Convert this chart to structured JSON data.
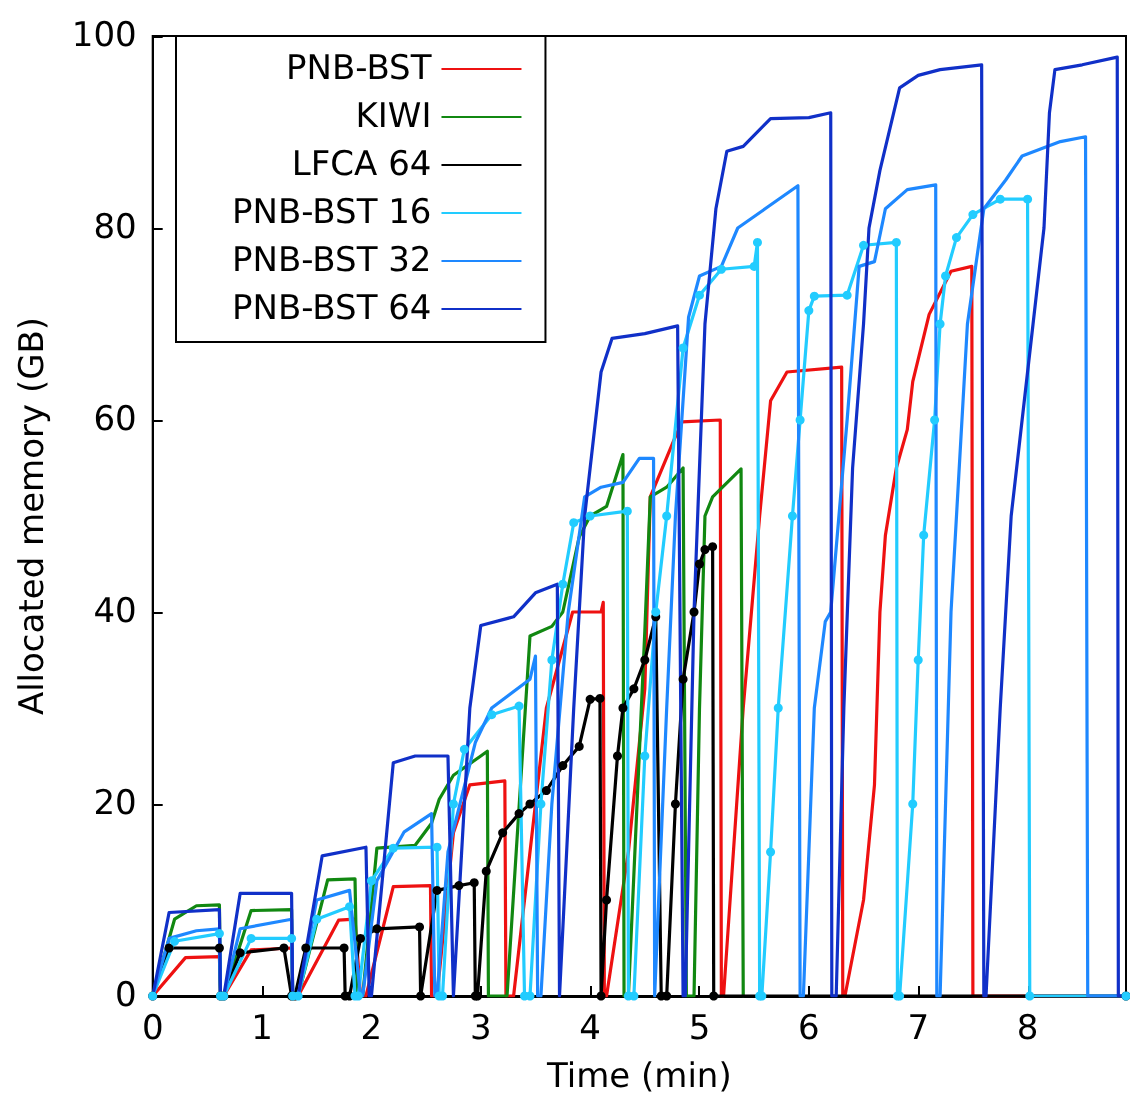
{
  "chart_data": {
    "type": "line",
    "xlabel": "Time (min)",
    "ylabel": "Allocated memory (GB)",
    "xlim": [
      0,
      8.9
    ],
    "ylim": [
      0,
      100
    ],
    "xticks": [
      0,
      1,
      2,
      3,
      4,
      5,
      6,
      7,
      8
    ],
    "yticks": [
      0,
      20,
      40,
      60,
      80,
      100
    ],
    "grid": false,
    "legend": "top left",
    "line_style": "solid",
    "series": [
      {
        "name": "PNB-BST",
        "color": "#ee1111",
        "marker": "none",
        "x": [
          0,
          0.3,
          0.61,
          0.62,
          0.65,
          0.9,
          1.27,
          1.28,
          1.33,
          1.7,
          1.85,
          1.9,
          1.95,
          2.2,
          2.54,
          2.55,
          2.6,
          2.75,
          2.9,
          3.22,
          3.23,
          3.3,
          3.45,
          3.6,
          3.84,
          4.1,
          4.12,
          4.13,
          4.15,
          4.35,
          4.5,
          4.55,
          4.77,
          4.84,
          5.19,
          5.2,
          5.22,
          5.4,
          5.55,
          5.65,
          5.8,
          6.3,
          6.31,
          6.33,
          6.5,
          6.6,
          6.65,
          6.7,
          6.8,
          6.9,
          6.95,
          7.1,
          7.3,
          7.49,
          7.5,
          8.9
        ],
        "values": [
          0,
          4,
          4.1,
          0,
          0,
          4.8,
          5,
          0,
          0,
          7.9,
          8,
          0,
          0,
          11.4,
          11.5,
          0,
          0,
          17,
          22,
          22.4,
          0,
          0,
          15,
          30,
          40,
          40,
          41,
          0,
          0,
          15,
          32,
          52,
          58,
          59.8,
          60,
          0,
          0,
          30,
          50,
          62,
          65,
          65.5,
          0,
          0,
          10,
          22,
          40,
          48,
          55,
          59,
          64,
          71,
          75.5,
          76,
          0,
          0
        ]
      },
      {
        "name": "KIWI",
        "color": "#118811",
        "marker": "none",
        "x": [
          0,
          0.2,
          0.4,
          0.61,
          0.62,
          0.65,
          0.9,
          1.27,
          1.28,
          1.33,
          1.6,
          1.85,
          1.87,
          1.92,
          2.05,
          2.4,
          2.55,
          2.62,
          2.75,
          3.0,
          3.06,
          3.07,
          3.24,
          3.45,
          3.65,
          3.75,
          3.9,
          4.0,
          4.15,
          4.3,
          4.31,
          4.35,
          4.5,
          4.55,
          4.7,
          4.85,
          4.88,
          4.95,
          5.0,
          5.05,
          5.12,
          5.38,
          5.4
        ],
        "values": [
          0,
          8,
          9.4,
          9.5,
          0,
          0,
          8.9,
          9,
          0,
          0,
          12.1,
          12.2,
          0,
          0,
          15.4,
          15.7,
          18,
          20.5,
          23,
          25,
          25.5,
          0,
          0,
          37.5,
          38.5,
          40,
          47.8,
          50,
          51,
          56.4,
          0,
          0,
          38,
          52,
          53,
          55,
          0,
          0,
          30,
          50,
          52,
          54.9,
          0
        ]
      },
      {
        "name": "LFCA 64",
        "color": "#000000",
        "marker": "circle",
        "x": [
          0,
          0.15,
          0.61,
          0.62,
          0.65,
          0.8,
          1.2,
          1.27,
          1.3,
          1.4,
          1.75,
          1.76,
          1.8,
          1.9,
          2.05,
          2.44,
          2.45,
          2.6,
          2.8,
          2.94,
          2.95,
          2.97,
          3.05,
          3.2,
          3.35,
          3.45,
          3.6,
          3.75,
          3.9,
          4.0,
          4.09,
          4.1,
          4.15,
          4.25,
          4.3,
          4.4,
          4.5,
          4.6,
          4.65,
          4.7,
          4.78,
          4.85,
          4.95,
          5.0,
          5.05,
          5.12,
          5.13,
          8.9
        ],
        "values": [
          0,
          5,
          5,
          0,
          0,
          4.5,
          5,
          0,
          0,
          5,
          5,
          0,
          0,
          6,
          7,
          7.2,
          0,
          11,
          11.5,
          11.8,
          0,
          0,
          13,
          17,
          19,
          20,
          21.4,
          24,
          26,
          30.9,
          31,
          0,
          10,
          25,
          30,
          32,
          35,
          39.5,
          0,
          0,
          20,
          33,
          40,
          45,
          46.5,
          46.8,
          0,
          0
        ]
      },
      {
        "name": "PNB-BST 16",
        "color": "#22ccff",
        "marker": "circle",
        "x": [
          0,
          0.2,
          0.61,
          0.62,
          0.65,
          0.9,
          1.27,
          1.28,
          1.33,
          1.5,
          1.8,
          1.85,
          1.88,
          2.0,
          2.2,
          2.6,
          2.62,
          2.65,
          2.75,
          2.85,
          3.1,
          3.35,
          3.4,
          3.45,
          3.55,
          3.65,
          3.75,
          3.85,
          4.0,
          4.34,
          4.35,
          4.4,
          4.5,
          4.6,
          4.7,
          4.85,
          5.0,
          5.2,
          5.5,
          5.53,
          5.55,
          5.57,
          5.65,
          5.72,
          5.85,
          5.92,
          6.0,
          6.05,
          6.35,
          6.5,
          6.8,
          6.81,
          6.83,
          6.95,
          7.0,
          7.05,
          7.15,
          7.2,
          7.25,
          7.35,
          7.5,
          7.75,
          8.0,
          8.02,
          8.9
        ],
        "values": [
          0,
          5.7,
          6.5,
          0,
          0,
          6,
          6,
          0,
          0,
          8,
          9.3,
          0,
          0,
          12,
          15.4,
          15.5,
          0,
          0,
          20,
          25.7,
          29.3,
          30.2,
          0,
          0,
          20,
          35,
          42.9,
          49.3,
          50,
          50.5,
          0,
          0,
          25,
          40,
          50,
          67.5,
          73,
          75.7,
          76,
          78.5,
          0,
          0,
          15,
          30,
          50,
          60,
          71.4,
          72.9,
          73,
          78.2,
          78.5,
          0,
          0,
          20,
          35,
          48,
          60,
          70,
          75,
          79,
          81.4,
          83,
          83,
          0,
          0
        ]
      },
      {
        "name": "PNB-BST 32",
        "color": "#1e88ff",
        "marker": "none",
        "x": [
          0,
          0.15,
          0.4,
          0.61,
          0.62,
          0.65,
          0.8,
          1.27,
          1.28,
          1.33,
          1.5,
          1.8,
          1.9,
          1.92,
          2.05,
          2.3,
          2.55,
          2.58,
          2.6,
          2.7,
          2.95,
          3.1,
          3.45,
          3.5,
          3.52,
          3.55,
          3.65,
          3.8,
          3.95,
          4.1,
          4.3,
          4.45,
          4.58,
          4.59,
          4.6,
          4.7,
          4.78,
          4.9,
          5.0,
          5.2,
          5.35,
          5.6,
          5.9,
          5.92,
          5.95,
          6.05,
          6.15,
          6.2,
          6.35,
          6.46,
          6.6,
          6.7,
          6.9,
          7.16,
          7.17,
          7.2,
          7.3,
          7.45,
          7.6,
          7.8,
          7.95,
          8.3,
          8.53,
          8.55,
          8.9
        ],
        "values": [
          0,
          6,
          6.8,
          7,
          0,
          0,
          7,
          8,
          0,
          0,
          10,
          11,
          0,
          0,
          12,
          17.1,
          19,
          0,
          0,
          15,
          26.4,
          30,
          33,
          35.4,
          0,
          0,
          20,
          40,
          52,
          53,
          53.5,
          56,
          56,
          0,
          0,
          30,
          50,
          70.7,
          75,
          76,
          80,
          82,
          84.4,
          0,
          0,
          30,
          39,
          40,
          60,
          76,
          76.5,
          82,
          84,
          84.5,
          0,
          0,
          40,
          70,
          82,
          85,
          87.5,
          89,
          89.5,
          0,
          0
        ]
      },
      {
        "name": "PNB-BST 64",
        "color": "#1030c8",
        "marker": "none",
        "x": [
          0,
          0.15,
          0.61,
          0.62,
          0.65,
          0.8,
          1.27,
          1.28,
          1.33,
          1.55,
          1.95,
          1.98,
          2.0,
          2.2,
          2.4,
          2.7,
          2.75,
          2.9,
          3.0,
          3.3,
          3.5,
          3.7,
          3.72,
          3.85,
          3.95,
          4.05,
          4.1,
          4.2,
          4.5,
          4.8,
          4.85,
          4.87,
          4.95,
          5.05,
          5.15,
          5.25,
          5.4,
          5.65,
          6.0,
          6.2,
          6.21,
          6.25,
          6.32,
          6.4,
          6.5,
          6.55,
          6.65,
          6.83,
          7.0,
          7.2,
          7.58,
          7.6,
          7.62,
          7.75,
          7.85,
          7.95,
          8.05,
          8.15,
          8.2,
          8.25,
          8.5,
          8.82,
          8.83,
          8.9
        ],
        "values": [
          0,
          8.7,
          9,
          0,
          0,
          10.7,
          10.7,
          0,
          0,
          14.6,
          15.5,
          0,
          0,
          24.3,
          25,
          25,
          0,
          30,
          38.6,
          39.5,
          42,
          42.9,
          0,
          30,
          50,
          60,
          65,
          68.5,
          69,
          69.8,
          0,
          0,
          40,
          70,
          82,
          88,
          88.5,
          91.4,
          91.5,
          92,
          0,
          0,
          30,
          55,
          70,
          80,
          86,
          94.6,
          95.9,
          96.5,
          97,
          0,
          0,
          30,
          50,
          60,
          70,
          80,
          92,
          96.5,
          97,
          97.8,
          0,
          0
        ]
      }
    ]
  }
}
